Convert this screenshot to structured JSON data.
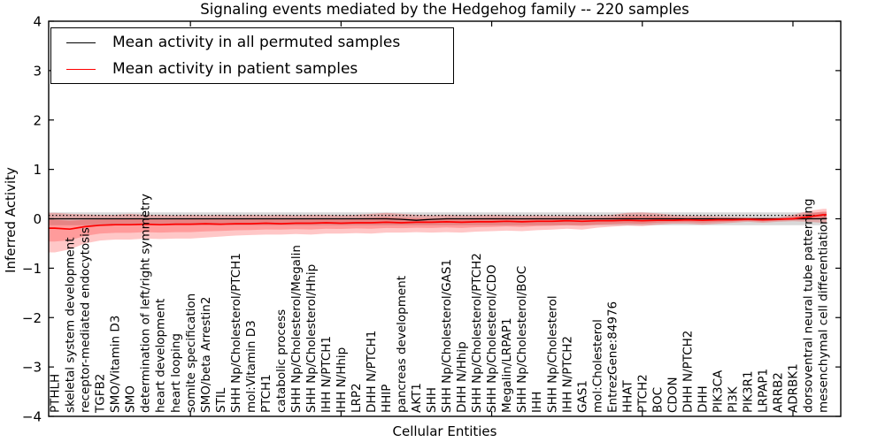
{
  "chart_data": {
    "type": "line",
    "title": "Signaling events mediated by the Hedgehog family -- 220 samples",
    "xlabel": "Cellular Entities",
    "ylabel": "Inferred Activity",
    "ylim": [
      -4,
      4
    ],
    "ytick_values": [
      4,
      3,
      2,
      1,
      0,
      -1,
      -2,
      -3,
      -4
    ],
    "ytick_labels": [
      "4",
      "3",
      "2",
      "1",
      "0",
      "−1",
      "−2",
      "−3",
      "−4"
    ],
    "xtick_major_indices": [
      9,
      19,
      29,
      39,
      49
    ],
    "grid": false,
    "legend_position": "upper left",
    "categories": [
      "PTHLH",
      "skeletal system development",
      "receptor-mediated endocytosis",
      "TGFB2",
      "SMO/Vitamin D3",
      "SMO",
      "determination of left/right symmetry",
      "heart development",
      "heart looping",
      "somite specification",
      "SMO/beta Arrestin2",
      "STIL",
      "SHH Np/Cholesterol/PTCH1",
      "mol:Vitamin D3",
      "PTCH1",
      "catabolic process",
      "SHH Np/Cholesterol/Megalin",
      "SHH Np/Cholesterol/Hhip",
      "IHH N/PTCH1",
      "IHH N/Hhip",
      "LRP2",
      "DHH N/PTCH1",
      "HHIP",
      "pancreas development",
      "AKT1",
      "SHH",
      "SHH Np/Cholesterol/GAS1",
      "DHH N/Hhip",
      "SHH Np/Cholesterol/PTCH2",
      "SHH Np/Cholesterol/CDO",
      "Megalin/LRPAP1",
      "SHH Np/Cholesterol/BOC",
      "IHH",
      "SHH Np/Cholesterol",
      "IHH N/PTCH2",
      "GAS1",
      "mol:Cholesterol",
      "EntrezGene:84976",
      "HHAT",
      "PTCH2",
      "BOC",
      "CDON",
      "DHH N/PTCH2",
      "DHH",
      "PIK3CA",
      "PI3K",
      "PIK3R1",
      "LRPAP1",
      "ARRB2",
      "ADRBK1",
      "dorsoventral neural tube patterning",
      "mesenchymal cell differentiation"
    ],
    "series": [
      {
        "name": "Mean activity in all permuted samples",
        "color": "#000000",
        "values": [
          0,
          0,
          0,
          0,
          0,
          0,
          0,
          0,
          0,
          0,
          0,
          0,
          0,
          0,
          0,
          0,
          0,
          0,
          0,
          0,
          0,
          0,
          0,
          -0.01,
          -0.03,
          -0.01,
          0,
          0,
          0,
          0,
          0,
          0,
          0,
          0,
          0,
          0,
          0,
          0,
          0,
          0,
          0,
          0,
          0,
          0,
          0,
          0,
          0,
          0,
          0,
          0,
          0,
          0
        ]
      },
      {
        "name": "Mean activity in patient samples",
        "color": "#ff0000",
        "values": [
          -0.19,
          -0.21,
          -0.16,
          -0.13,
          -0.12,
          -0.12,
          -0.11,
          -0.12,
          -0.11,
          -0.11,
          -0.1,
          -0.11,
          -0.1,
          -0.1,
          -0.09,
          -0.1,
          -0.09,
          -0.09,
          -0.08,
          -0.09,
          -0.08,
          -0.08,
          -0.07,
          -0.08,
          -0.07,
          -0.07,
          -0.06,
          -0.07,
          -0.06,
          -0.06,
          -0.05,
          -0.06,
          -0.05,
          -0.05,
          -0.04,
          -0.05,
          -0.04,
          -0.04,
          -0.03,
          -0.04,
          -0.03,
          -0.03,
          -0.02,
          -0.03,
          -0.02,
          -0.02,
          -0.01,
          -0.02,
          -0.01,
          0.0,
          0.04,
          0.08
        ]
      }
    ],
    "patient_band": {
      "color": "rgba(255,0,0,0.22)",
      "inner_scale": 0.55,
      "low": [
        -0.68,
        -0.62,
        -0.5,
        -0.44,
        -0.42,
        -0.42,
        -0.4,
        -0.41,
        -0.4,
        -0.4,
        -0.38,
        -0.36,
        -0.34,
        -0.33,
        -0.32,
        -0.32,
        -0.31,
        -0.32,
        -0.3,
        -0.3,
        -0.29,
        -0.3,
        -0.28,
        -0.28,
        -0.27,
        -0.28,
        -0.27,
        -0.28,
        -0.26,
        -0.25,
        -0.24,
        -0.25,
        -0.23,
        -0.22,
        -0.2,
        -0.22,
        -0.18,
        -0.16,
        -0.14,
        -0.15,
        -0.12,
        -0.1,
        -0.1,
        -0.12,
        -0.1,
        -0.08,
        -0.06,
        -0.08,
        -0.06,
        -0.05,
        -0.06,
        -0.08
      ],
      "high": [
        0.12,
        0.1,
        0.09,
        0.08,
        0.08,
        0.1,
        0.08,
        0.08,
        0.07,
        0.08,
        0.07,
        0.08,
        0.07,
        0.08,
        0.07,
        0.08,
        0.07,
        0.08,
        0.08,
        0.07,
        0.08,
        0.1,
        0.12,
        0.1,
        0.08,
        0.07,
        0.08,
        0.07,
        0.07,
        0.08,
        0.07,
        0.06,
        0.07,
        0.06,
        0.06,
        0.07,
        0.06,
        0.08,
        0.12,
        0.13,
        0.11,
        0.08,
        0.06,
        0.06,
        0.05,
        0.04,
        0.03,
        0.03,
        0.03,
        0.08,
        0.16,
        0.2
      ]
    },
    "permuted_band": {
      "low": -0.13,
      "high": 0.13,
      "color": "rgba(130,130,130,0.30)"
    },
    "permuted_marker_level": 0.07
  }
}
